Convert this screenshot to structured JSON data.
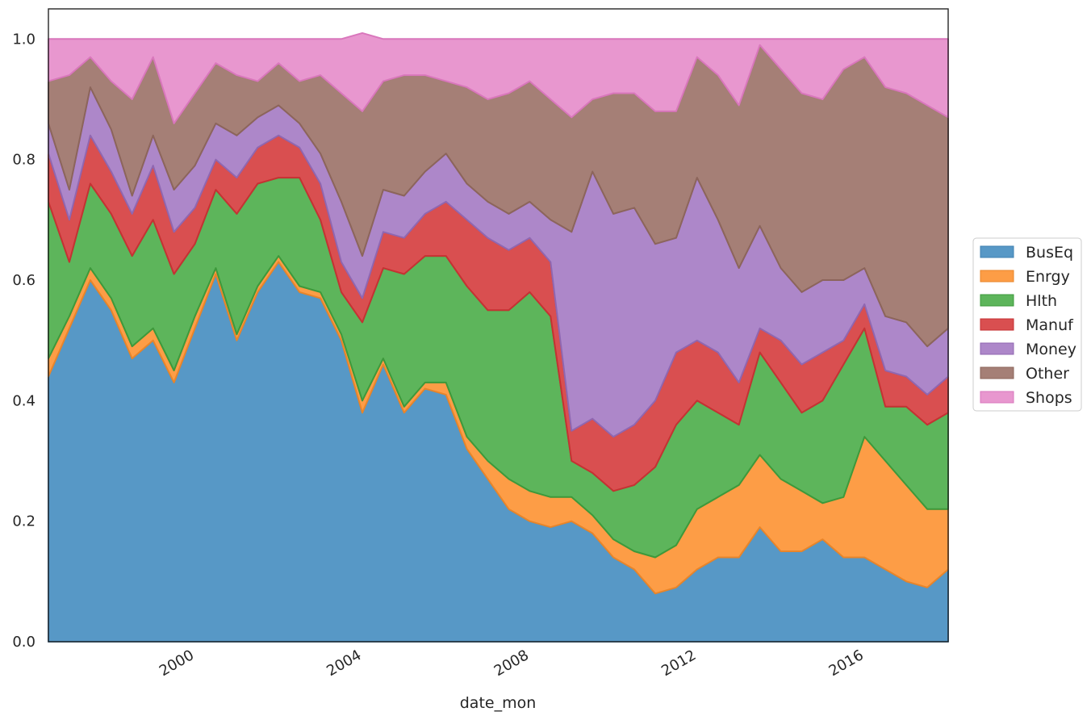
{
  "chart_data": {
    "type": "area",
    "stacked": true,
    "xlabel": "date_mon",
    "ylabel": "",
    "xlim": [
      1997.0,
      2018.5
    ],
    "ylim": [
      0.0,
      1.05
    ],
    "x_ticks": [
      {
        "value": 2000.5,
        "label": "2000"
      },
      {
        "value": 2004.5,
        "label": "2004"
      },
      {
        "value": 2008.5,
        "label": "2008"
      },
      {
        "value": 2012.5,
        "label": "2012"
      },
      {
        "value": 2016.5,
        "label": "2016"
      }
    ],
    "y_ticks": [
      {
        "value": 0.0,
        "label": "0.0"
      },
      {
        "value": 0.2,
        "label": "0.2"
      },
      {
        "value": 0.4,
        "label": "0.4"
      },
      {
        "value": 0.6,
        "label": "0.6"
      },
      {
        "value": 0.8,
        "label": "0.8"
      },
      {
        "value": 1.0,
        "label": "1.0"
      }
    ],
    "grid": false,
    "legend": "right",
    "x": [
      1997.0,
      1997.5,
      1998.0,
      1998.5,
      1999.0,
      1999.5,
      2000.0,
      2000.5,
      2001.0,
      2001.5,
      2002.0,
      2002.5,
      2003.0,
      2003.5,
      2004.0,
      2004.5,
      2005.0,
      2005.5,
      2006.0,
      2006.5,
      2007.0,
      2007.5,
      2008.0,
      2008.5,
      2009.0,
      2009.5,
      2010.0,
      2010.5,
      2011.0,
      2011.5,
      2012.0,
      2012.5,
      2013.0,
      2013.5,
      2014.0,
      2014.5,
      2015.0,
      2015.5,
      2016.0,
      2016.5,
      2017.0,
      2017.5,
      2018.0,
      2018.5
    ],
    "series": [
      {
        "name": "BusEq",
        "color": "#5798c6",
        "stroke": "#3f80b1",
        "values": [
          0.44,
          0.52,
          0.6,
          0.55,
          0.47,
          0.5,
          0.43,
          0.52,
          0.61,
          0.5,
          0.58,
          0.63,
          0.58,
          0.57,
          0.5,
          0.38,
          0.46,
          0.38,
          0.42,
          0.41,
          0.32,
          0.27,
          0.22,
          0.2,
          0.19,
          0.2,
          0.18,
          0.14,
          0.12,
          0.08,
          0.09,
          0.12,
          0.14,
          0.14,
          0.19,
          0.15,
          0.15,
          0.17,
          0.14,
          0.14,
          0.12,
          0.1,
          0.09,
          0.12
        ]
      },
      {
        "name": "Enrgy",
        "color": "#fd9d46",
        "stroke": "#e8852a",
        "values": [
          0.03,
          0.02,
          0.02,
          0.02,
          0.02,
          0.02,
          0.02,
          0.02,
          0.01,
          0.01,
          0.01,
          0.01,
          0.01,
          0.01,
          0.01,
          0.02,
          0.01,
          0.01,
          0.01,
          0.02,
          0.02,
          0.03,
          0.05,
          0.05,
          0.05,
          0.04,
          0.03,
          0.03,
          0.03,
          0.06,
          0.07,
          0.1,
          0.1,
          0.12,
          0.12,
          0.12,
          0.1,
          0.06,
          0.1,
          0.2,
          0.18,
          0.16,
          0.13,
          0.1
        ]
      },
      {
        "name": "Hlth",
        "color": "#5db55b",
        "stroke": "#3d993b",
        "values": [
          0.26,
          0.09,
          0.14,
          0.14,
          0.15,
          0.18,
          0.16,
          0.12,
          0.13,
          0.2,
          0.17,
          0.13,
          0.18,
          0.12,
          0.07,
          0.13,
          0.15,
          0.22,
          0.21,
          0.21,
          0.25,
          0.25,
          0.28,
          0.33,
          0.3,
          0.06,
          0.07,
          0.08,
          0.11,
          0.15,
          0.2,
          0.18,
          0.14,
          0.1,
          0.17,
          0.16,
          0.13,
          0.17,
          0.22,
          0.18,
          0.09,
          0.13,
          0.14,
          0.16
        ]
      },
      {
        "name": "Manuf",
        "color": "#d94f50",
        "stroke": "#c53233",
        "values": [
          0.08,
          0.07,
          0.08,
          0.07,
          0.07,
          0.09,
          0.07,
          0.06,
          0.05,
          0.06,
          0.06,
          0.07,
          0.05,
          0.06,
          0.05,
          0.04,
          0.06,
          0.06,
          0.07,
          0.09,
          0.11,
          0.12,
          0.1,
          0.09,
          0.09,
          0.05,
          0.09,
          0.09,
          0.1,
          0.11,
          0.12,
          0.1,
          0.1,
          0.07,
          0.04,
          0.07,
          0.08,
          0.08,
          0.04,
          0.04,
          0.06,
          0.05,
          0.05,
          0.06
        ]
      },
      {
        "name": "Money",
        "color": "#ad87c9",
        "stroke": "#9067b1",
        "values": [
          0.05,
          0.05,
          0.08,
          0.07,
          0.03,
          0.05,
          0.07,
          0.07,
          0.06,
          0.07,
          0.05,
          0.05,
          0.04,
          0.05,
          0.1,
          0.07,
          0.07,
          0.07,
          0.07,
          0.08,
          0.06,
          0.06,
          0.06,
          0.06,
          0.07,
          0.33,
          0.41,
          0.37,
          0.36,
          0.26,
          0.19,
          0.27,
          0.22,
          0.19,
          0.17,
          0.12,
          0.12,
          0.12,
          0.1,
          0.06,
          0.09,
          0.09,
          0.08,
          0.08
        ]
      },
      {
        "name": "Other",
        "color": "#a57f76",
        "stroke": "#8c655b",
        "values": [
          0.07,
          0.19,
          0.05,
          0.08,
          0.16,
          0.13,
          0.11,
          0.12,
          0.1,
          0.1,
          0.06,
          0.07,
          0.07,
          0.13,
          0.18,
          0.24,
          0.18,
          0.2,
          0.16,
          0.12,
          0.16,
          0.17,
          0.2,
          0.2,
          0.2,
          0.19,
          0.12,
          0.2,
          0.19,
          0.22,
          0.21,
          0.2,
          0.24,
          0.27,
          0.3,
          0.33,
          0.33,
          0.3,
          0.35,
          0.35,
          0.38,
          0.38,
          0.4,
          0.35
        ]
      },
      {
        "name": "Shops",
        "color": "#e897cf",
        "stroke": "#d977bc",
        "values": [
          0.07,
          0.06,
          0.03,
          0.07,
          0.1,
          0.03,
          0.14,
          0.09,
          0.04,
          0.06,
          0.07,
          0.04,
          0.07,
          0.06,
          0.09,
          0.13,
          0.07,
          0.06,
          0.06,
          0.07,
          0.08,
          0.1,
          0.09,
          0.07,
          0.1,
          0.13,
          0.1,
          0.09,
          0.09,
          0.12,
          0.12,
          0.03,
          0.06,
          0.11,
          0.01,
          0.05,
          0.09,
          0.1,
          0.05,
          0.03,
          0.08,
          0.09,
          0.11,
          0.13
        ]
      }
    ]
  }
}
